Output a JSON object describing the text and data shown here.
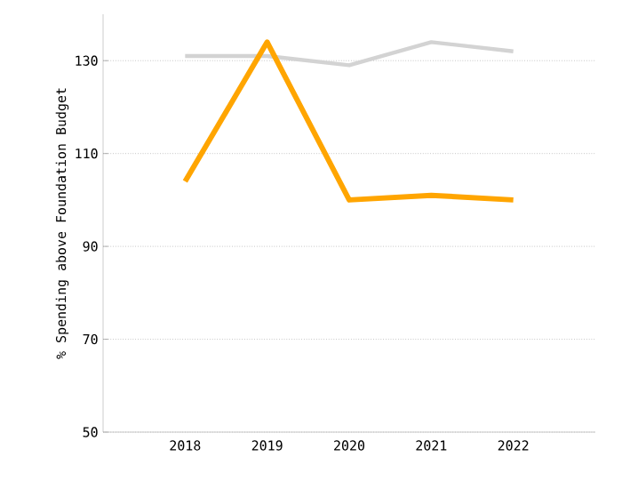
{
  "chart_data": {
    "type": "line",
    "ylabel": "% Spending above Foundation Budget",
    "categories": [
      "2018",
      "2019",
      "2020",
      "2021",
      "2022"
    ],
    "series": [
      {
        "color": "#d3d3d3",
        "values": [
          131,
          131,
          129,
          134,
          132
        ]
      },
      {
        "color": "#ffa500",
        "values": [
          104,
          134,
          100,
          101,
          100
        ]
      }
    ],
    "ylim": [
      50,
      140
    ],
    "yticks": [
      50,
      70,
      90,
      110,
      130
    ],
    "grid": "y",
    "marker": "none",
    "line_style": "solid"
  }
}
